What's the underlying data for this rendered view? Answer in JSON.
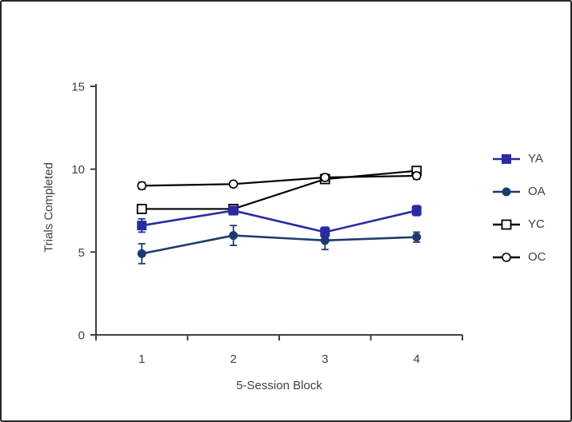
{
  "figure": {
    "background": "#ffffff",
    "border_color": "#262626",
    "text_color": "#404040",
    "axis_color": "#404040"
  },
  "chart_data": {
    "type": "line",
    "title": "",
    "xlabel": "5-Session Block",
    "ylabel": "Trials Completed",
    "categories": [
      1,
      2,
      3,
      4
    ],
    "x_tick_labels": [
      "1",
      "2",
      "3",
      "4"
    ],
    "y_ticks": [
      0,
      5,
      10,
      15
    ],
    "y_tick_labels": [
      "0",
      "5",
      "10",
      "15"
    ],
    "ylim": [
      0,
      15
    ],
    "grid": false,
    "legend_position": "right",
    "series": [
      {
        "name": "YA",
        "color": "#2a2aa4",
        "marker": "square-filled",
        "line_width": 2.6,
        "values": [
          6.6,
          7.5,
          6.2,
          7.5
        ],
        "errors": [
          0.4,
          0.25,
          0.3,
          0.3
        ]
      },
      {
        "name": "OA",
        "color": "#1d3c6e",
        "marker": "circle-filled",
        "line_width": 2.6,
        "values": [
          4.9,
          6.0,
          5.7,
          5.9
        ],
        "errors": [
          0.6,
          0.6,
          0.55,
          0.3
        ]
      },
      {
        "name": "YC",
        "color": "#000000",
        "marker": "square-open",
        "line_width": 2.2,
        "values": [
          7.6,
          7.6,
          9.4,
          9.9
        ],
        "errors": [
          0.25,
          0.2,
          0.2,
          0.25
        ]
      },
      {
        "name": "OC",
        "color": "#000000",
        "marker": "circle-open",
        "line_width": 2.2,
        "values": [
          9.0,
          9.1,
          9.5,
          9.6
        ],
        "errors": [
          0.2,
          0.15,
          0.2,
          0.2
        ]
      }
    ]
  }
}
